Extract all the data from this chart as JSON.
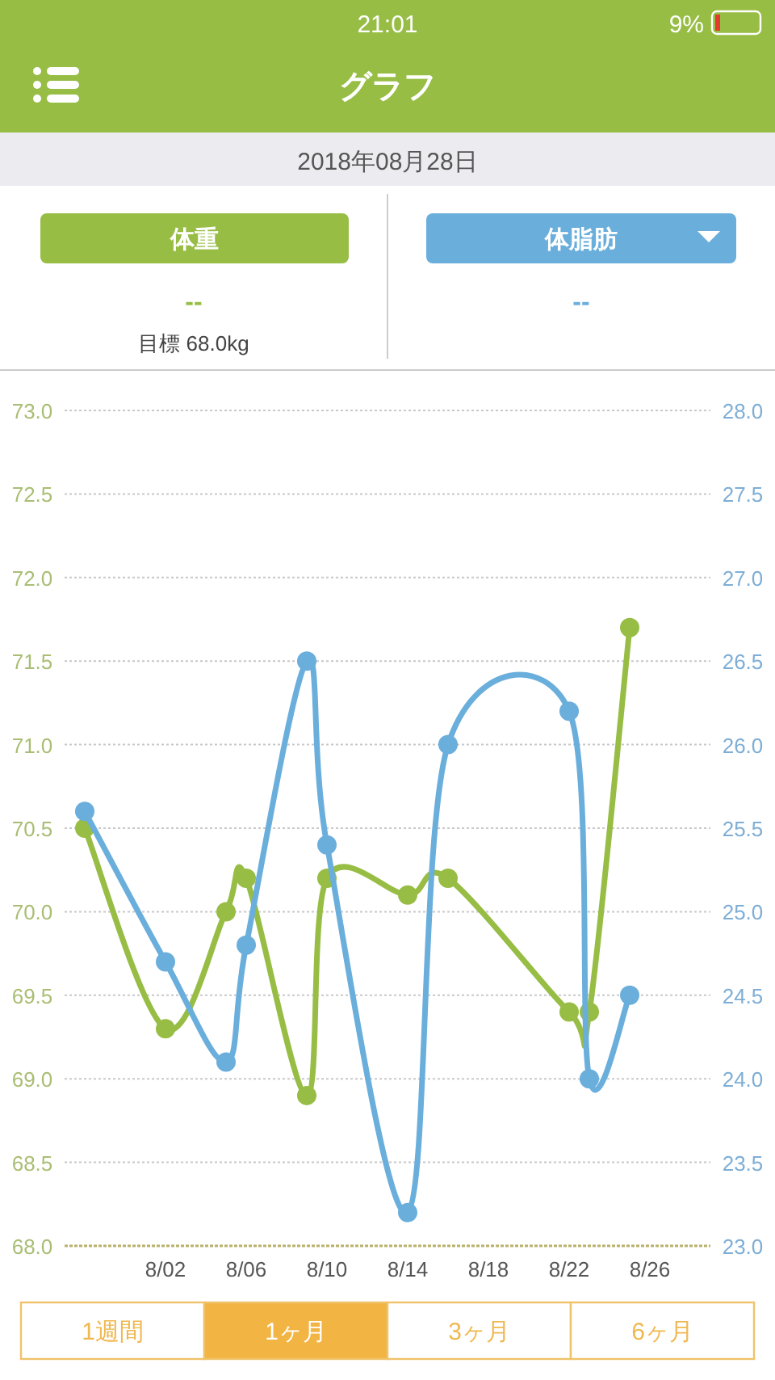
{
  "chart_data": {
    "type": "line",
    "title": "グラフ",
    "subtitle": "2018年08月28日",
    "x": [
      "--07-29",
      "--08-02",
      "--08-05",
      "--08-06",
      "--08-09",
      "--08-10",
      "--08-14",
      "--08-16",
      "--08-22",
      "--08-23",
      "--08-25"
    ],
    "series": [
      {
        "name": "体重",
        "color": "#97bd45",
        "values": [
          70.5,
          69.3,
          70.0,
          70.2,
          68.9,
          70.2,
          70.1,
          70.2,
          69.4,
          69.4,
          71.7
        ]
      },
      {
        "name": "体脂肪",
        "color": "#6aaedc",
        "axis": "y2",
        "values": [
          25.6,
          24.7,
          24.1,
          24.8,
          26.5,
          25.4,
          23.2,
          26.0,
          26.2,
          24.0,
          24.5
        ]
      }
    ],
    "xlim": [
      "--07-28",
      "--08-29"
    ],
    "xticks": [
      {
        "value": "--08-02",
        "label": "8/02"
      },
      {
        "value": "--08-06",
        "label": "8/06"
      },
      {
        "value": "--08-10",
        "label": "8/10"
      },
      {
        "value": "--08-14",
        "label": "8/14"
      },
      {
        "value": "--08-18",
        "label": "8/18"
      },
      {
        "value": "--08-22",
        "label": "8/22"
      },
      {
        "value": "--08-26",
        "label": "8/26"
      }
    ],
    "ylim": [
      68,
      73
    ],
    "yticks": [
      {
        "value": 68,
        "label": "68.0"
      },
      {
        "value": 68.5,
        "label": "68.5"
      },
      {
        "value": 69,
        "label": "69.0"
      },
      {
        "value": 69.5,
        "label": "69.5"
      },
      {
        "value": 70,
        "label": "70.0"
      },
      {
        "value": 70.5,
        "label": "70.5"
      },
      {
        "value": 71,
        "label": "71.0"
      },
      {
        "value": 71.5,
        "label": "71.5"
      },
      {
        "value": 72,
        "label": "72.0"
      },
      {
        "value": 72.5,
        "label": "72.5"
      },
      {
        "value": 73,
        "label": "73.0"
      }
    ],
    "y2lim": [
      23,
      28
    ],
    "y2ticks": [
      {
        "value": 23,
        "label": "23.0"
      },
      {
        "value": 23.5,
        "label": "23.5"
      },
      {
        "value": 24,
        "label": "24.0"
      },
      {
        "value": 24.5,
        "label": "24.5"
      },
      {
        "value": 25,
        "label": "25.0"
      },
      {
        "value": 25.5,
        "label": "25.5"
      },
      {
        "value": 26,
        "label": "26.0"
      },
      {
        "value": 26.5,
        "label": "26.5"
      },
      {
        "value": 27,
        "label": "27.0"
      },
      {
        "value": 27.5,
        "label": "27.5"
      },
      {
        "value": 28,
        "label": "28.0"
      }
    ],
    "grid": "y",
    "legend": "top",
    "marker": "circle",
    "line_style": "solid",
    "annotations": [
      "21:01",
      "9%",
      "--",
      "--",
      "目標 68.0kg",
      "1週間",
      "1ヶ月",
      "3ヶ月",
      "6ヶ月"
    ]
  }
}
